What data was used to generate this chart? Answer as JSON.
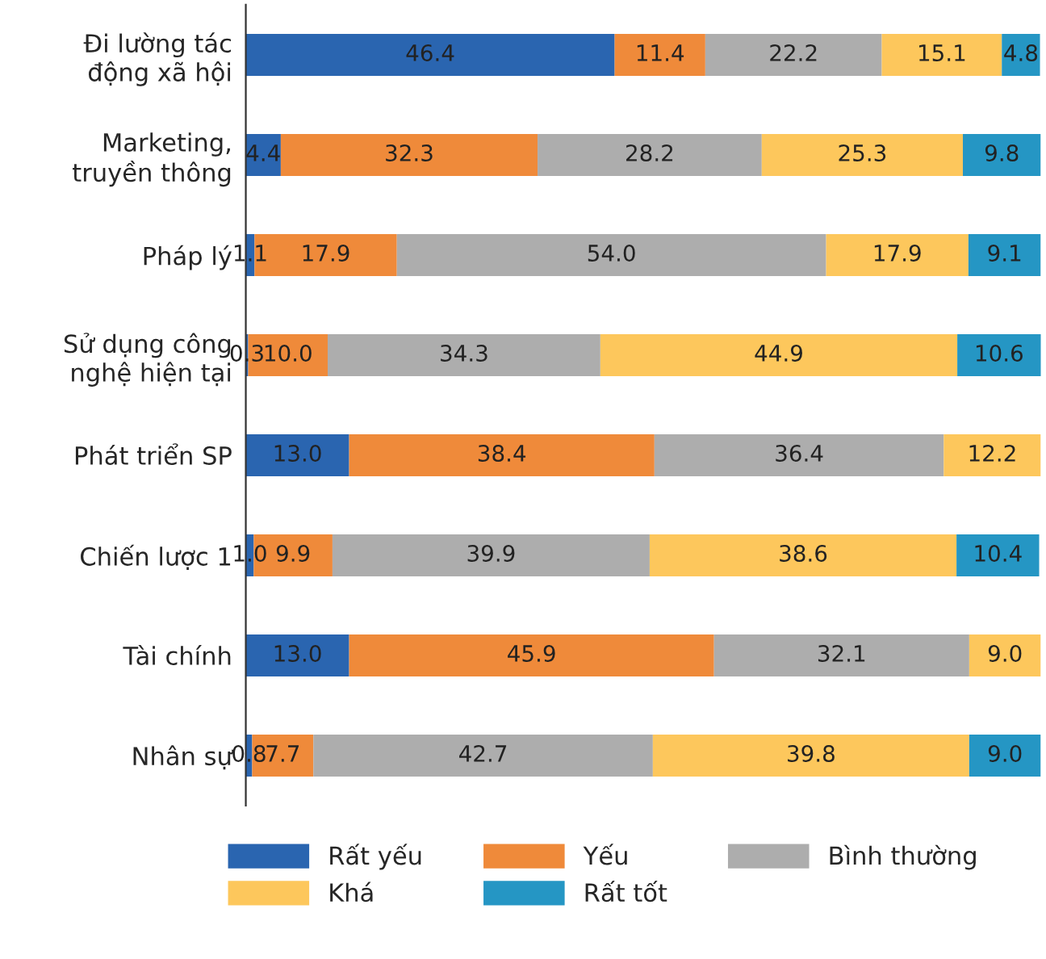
{
  "chart_data": {
    "type": "bar",
    "orientation": "horizontal",
    "stacked": true,
    "legend": "bottom",
    "grid": false,
    "xlim": [
      0,
      100
    ],
    "categories": [
      "Đi lường tác\nđộng xã hội",
      "Marketing,\ntruyền thông",
      "Pháp lý",
      "Sử dụng công\nnghệ hiện tại",
      "Phát triển SP",
      "Chiến lược 1",
      "Tài chính",
      "Nhân sự"
    ],
    "series": [
      {
        "name": "Rất yếu",
        "color": "#2a65b0",
        "values": [
          46.4,
          4.4,
          1.1,
          0.3,
          13.0,
          1.0,
          13.0,
          0.8
        ],
        "value_labels": [
          "46.4",
          "4.4",
          "1.1",
          "0.3",
          "13.0",
          "1.0",
          "13.0",
          "0.8"
        ]
      },
      {
        "name": "Yếu",
        "color": "#ef8a3a",
        "values": [
          11.4,
          32.3,
          17.9,
          10.0,
          38.4,
          9.9,
          45.9,
          7.7
        ],
        "value_labels": [
          "11.4",
          "32.3",
          "17.9",
          "10.0",
          "38.4",
          "9.9",
          "45.9",
          "7.7"
        ]
      },
      {
        "name": "Bình thường",
        "color": "#adadad",
        "values": [
          22.2,
          28.2,
          54.0,
          34.3,
          36.4,
          39.9,
          32.1,
          42.7
        ],
        "value_labels": [
          "22.2",
          "28.2",
          "54.0",
          "34.3",
          "36.4",
          "39.9",
          "32.1",
          "42.7"
        ]
      },
      {
        "name": "Khá",
        "color": "#fdc75c",
        "values": [
          15.1,
          25.3,
          17.9,
          44.9,
          12.2,
          38.6,
          9.0,
          39.8
        ],
        "value_labels": [
          "15.1",
          "25.3",
          "17.9",
          "44.9",
          "12.2",
          "38.6",
          "9.0",
          "39.8"
        ]
      },
      {
        "name": "Rất tốt",
        "color": "#2596c4",
        "values": [
          4.8,
          9.8,
          9.1,
          10.6,
          null,
          10.4,
          null,
          9.0
        ],
        "value_labels": [
          "4.8",
          "9.8",
          "9.1",
          "10.6",
          null,
          "10.4",
          null,
          "9.0"
        ]
      }
    ]
  }
}
